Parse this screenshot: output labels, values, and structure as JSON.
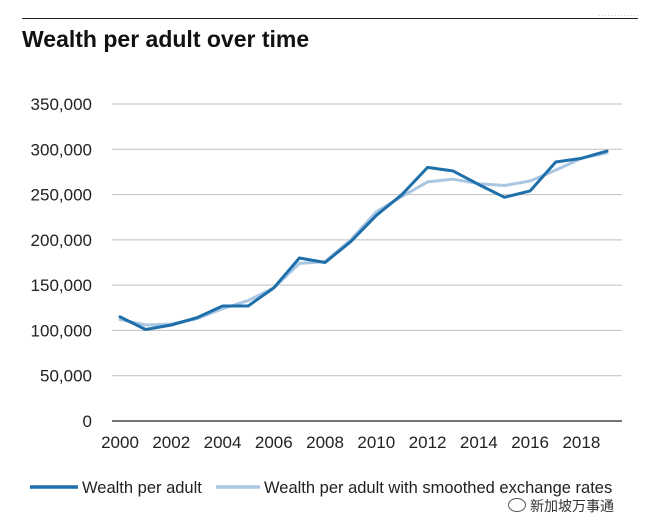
{
  "title": "Wealth per adult over time",
  "corner_mark": "·············",
  "watermark": "新加坡万事通",
  "colors": {
    "series1": "#1f6faa",
    "series2": "#a9c6e2",
    "grid": "#bfbfbf",
    "axis": "#222222"
  },
  "chart_data": {
    "type": "line",
    "title": "Wealth per adult over time",
    "xlabel": "",
    "ylabel": "",
    "xlim": [
      2000,
      2019
    ],
    "ylim": [
      0,
      350000
    ],
    "y_ticks": [
      0,
      50000,
      100000,
      150000,
      200000,
      250000,
      300000,
      350000
    ],
    "y_tick_labels": [
      "0",
      "50,000",
      "100,000",
      "150,000",
      "200,000",
      "250,000",
      "300,000",
      "350,000"
    ],
    "x_ticks": [
      2000,
      2002,
      2004,
      2006,
      2008,
      2010,
      2012,
      2014,
      2016,
      2018
    ],
    "x_tick_labels": [
      "2000",
      "2002",
      "2004",
      "2006",
      "2008",
      "2010",
      "2012",
      "2014",
      "2016",
      "2018"
    ],
    "grid": true,
    "legend_position": "bottom",
    "x": [
      2000,
      2001,
      2002,
      2003,
      2004,
      2005,
      2006,
      2007,
      2008,
      2009,
      2010,
      2011,
      2012,
      2013,
      2014,
      2015,
      2016,
      2017,
      2018,
      2019
    ],
    "series": [
      {
        "name": "Wealth per adult",
        "values": [
          115000,
          101000,
          106000,
          114000,
          127000,
          127000,
          147000,
          180000,
          175000,
          198000,
          227000,
          250000,
          280000,
          276000,
          261000,
          247000,
          254000,
          286000,
          290000,
          298000
        ]
      },
      {
        "name": "Wealth per adult with smoothed exchange rates",
        "values": [
          112000,
          106000,
          107000,
          113000,
          124000,
          133000,
          147000,
          174000,
          176000,
          200000,
          231000,
          248000,
          264000,
          267000,
          262000,
          260000,
          265000,
          277000,
          290000,
          296000
        ]
      }
    ]
  }
}
